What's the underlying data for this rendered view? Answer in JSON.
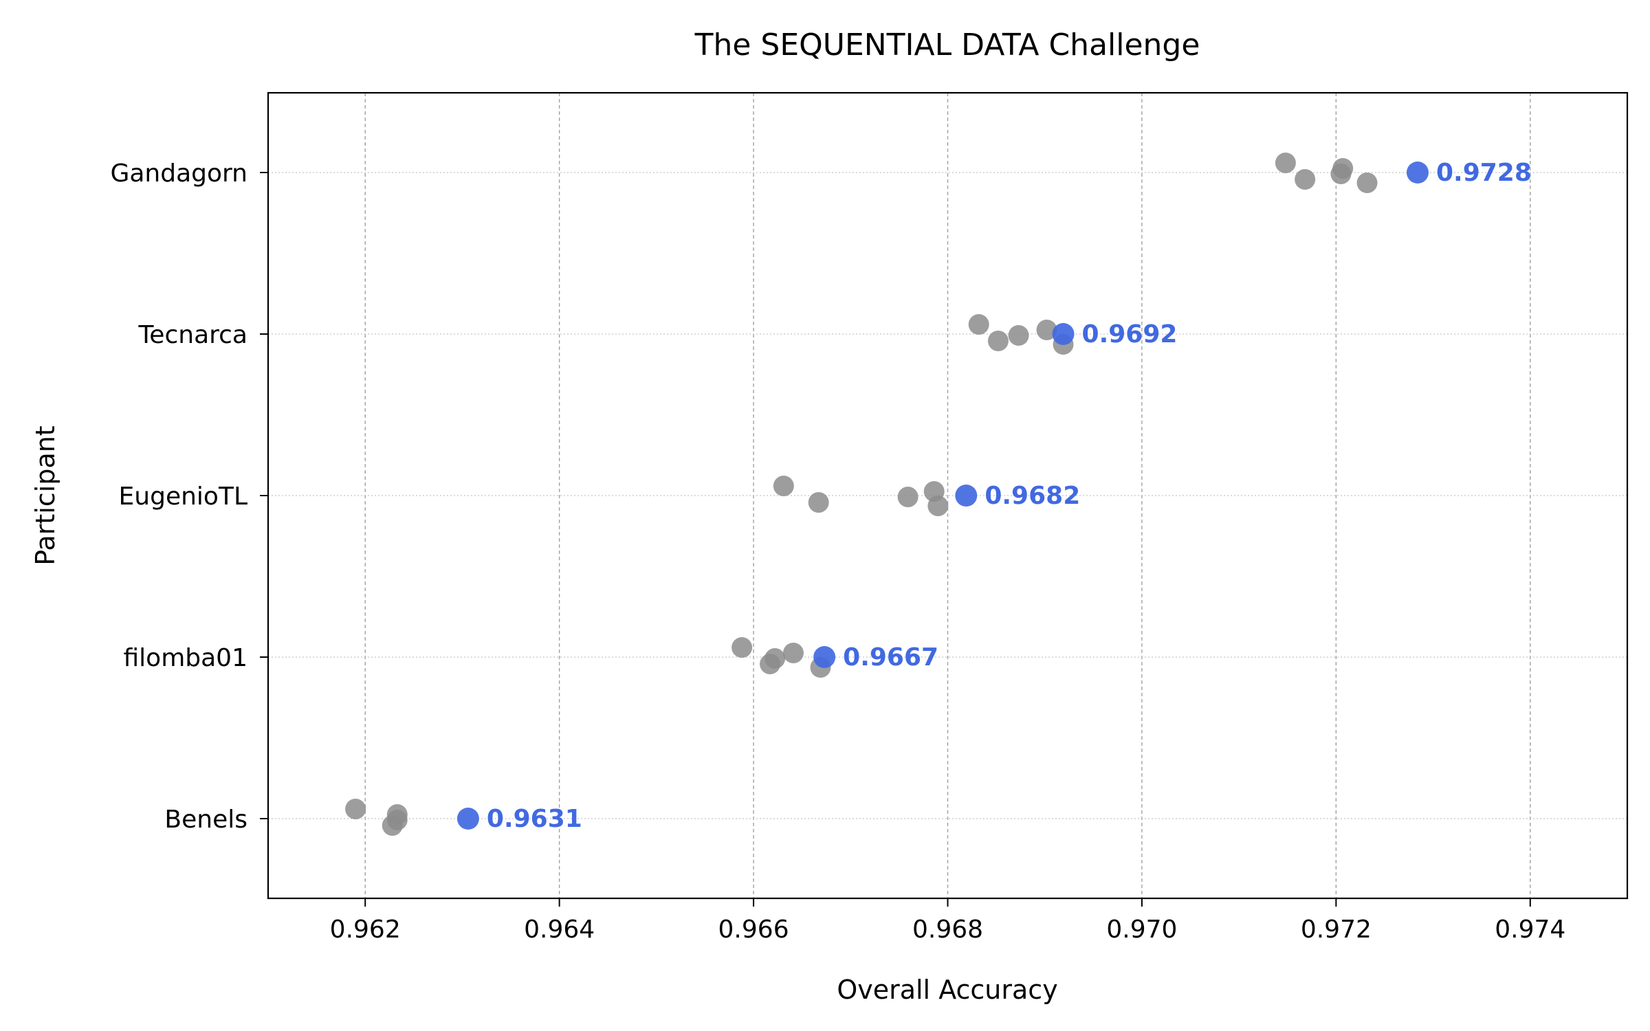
{
  "chart_data": {
    "type": "scatter",
    "title": "The SEQUENTIAL DATA Challenge",
    "xlabel": "Overall Accuracy",
    "ylabel": "Participant",
    "xlim": [
      0.961,
      0.975
    ],
    "xticks": [
      0.962,
      0.964,
      0.966,
      0.968,
      0.97,
      0.972,
      0.974
    ],
    "xtick_labels": [
      "0.962",
      "0.964",
      "0.966",
      "0.968",
      "0.970",
      "0.972",
      "0.974"
    ],
    "categories": [
      "Gandagorn",
      "Tecnarca",
      "EugenioTL",
      "filomba01",
      "Benels"
    ],
    "grid": true,
    "colors": {
      "runs": "#8c8c8c",
      "best": "#4169e1"
    },
    "series": [
      {
        "category": "Gandagorn",
        "runs": [
          0.97148,
          0.97168,
          0.97205,
          0.97207,
          0.97232
        ],
        "best": 0.97284,
        "best_label": "0.9728"
      },
      {
        "category": "Tecnarca",
        "runs": [
          0.96832,
          0.96852,
          0.96873,
          0.96902,
          0.96919
        ],
        "best": 0.96919,
        "best_label": "0.9692"
      },
      {
        "category": "EugenioTL",
        "runs": [
          0.96631,
          0.96667,
          0.96759,
          0.96786,
          0.9679
        ],
        "best": 0.96819,
        "best_label": "0.9682"
      },
      {
        "category": "filomba01",
        "runs": [
          0.96588,
          0.96617,
          0.96622,
          0.96641,
          0.96669
        ],
        "best": 0.96673,
        "best_label": "0.9667"
      },
      {
        "category": "Benels",
        "runs": [
          0.9619,
          0.96228,
          0.96233,
          0.96233
        ],
        "best": 0.96306,
        "best_label": "0.9631"
      }
    ]
  }
}
